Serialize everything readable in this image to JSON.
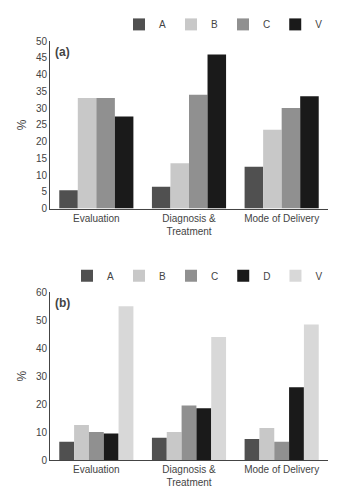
{
  "chart_data": [
    {
      "type": "bar",
      "annotation": "(a)",
      "ylabel": "%",
      "categories": [
        "Evaluation",
        "Diagnosis &\nTreatment",
        "Mode of Delivery"
      ],
      "series": [
        {
          "name": "A",
          "color": "#505050",
          "values": [
            5.5,
            6.5,
            12.5
          ]
        },
        {
          "name": "B",
          "color": "#c8c8c8",
          "values": [
            33,
            13.5,
            23.5
          ]
        },
        {
          "name": "C",
          "color": "#909090",
          "values": [
            33,
            34,
            30
          ]
        },
        {
          "name": "V",
          "color": "#1a1a1a",
          "values": [
            27.5,
            46,
            33.5
          ]
        }
      ],
      "ylim": [
        0,
        50
      ],
      "yticks": [
        0,
        5,
        10,
        15,
        20,
        25,
        30,
        35,
        40,
        45,
        50
      ],
      "grid": false,
      "legend": "upper right"
    },
    {
      "type": "bar",
      "annotation": "(b)",
      "ylabel": "%",
      "categories": [
        "Evaluation",
        "Diagnosis &\nTreatment",
        "Mode of Delivery"
      ],
      "series": [
        {
          "name": "A",
          "color": "#505050",
          "values": [
            6.5,
            8,
            7.5
          ]
        },
        {
          "name": "B",
          "color": "#c8c8c8",
          "values": [
            12.5,
            10,
            11.5
          ]
        },
        {
          "name": "C",
          "color": "#909090",
          "values": [
            10,
            19.5,
            6.5
          ]
        },
        {
          "name": "D",
          "color": "#1a1a1a",
          "values": [
            9.5,
            18.5,
            26
          ]
        },
        {
          "name": "V",
          "color": "#d8d8d8",
          "values": [
            55,
            44,
            48.5
          ]
        }
      ],
      "ylim": [
        0,
        60
      ],
      "yticks": [
        0,
        10,
        20,
        30,
        40,
        50,
        60
      ],
      "grid": false,
      "legend": "upper right"
    }
  ]
}
